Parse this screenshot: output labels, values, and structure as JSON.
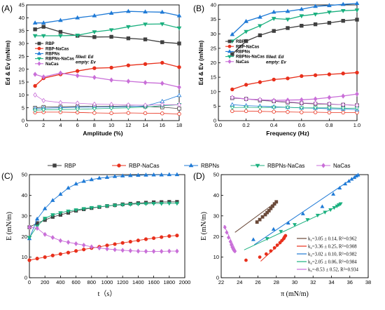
{
  "chart_data": [
    {
      "panel": "(A)",
      "type": "line",
      "xlabel": "Amplitude (%)",
      "ylabel": "Ed & Ev (mN/m)",
      "xlim": [
        0,
        18
      ],
      "ylim": [
        0,
        45
      ],
      "xticks": [
        "0",
        "2",
        "4",
        "6",
        "8",
        "10",
        "12",
        "14",
        "16",
        "18"
      ],
      "yticks": [
        "0",
        "5",
        "10",
        "15",
        "20",
        "25",
        "30",
        "35",
        "40",
        "45"
      ],
      "legend": [
        "RBP",
        "RBP-NaCas",
        "RBPNs",
        "RBPNs-NaCas",
        "NaCas"
      ],
      "legend_note": [
        "filled: Ed",
        "empty: Ev"
      ],
      "x": [
        1,
        2,
        4,
        6,
        8,
        10,
        12,
        14,
        16,
        18
      ],
      "series": [
        {
          "name": "RBP",
          "color": "#404040",
          "marker": "square",
          "filled": [
            35.5,
            36.5,
            34.5,
            33.0,
            32.5,
            32.6,
            32.0,
            31.6,
            30.5,
            30.0
          ],
          "empty": [
            5.0,
            5.3,
            5.4,
            5.5,
            5.6,
            5.6,
            5.7,
            5.5,
            5.2,
            4.7
          ]
        },
        {
          "name": "RBP-NaCas",
          "color": "#e8301c",
          "marker": "circle",
          "filled": [
            13.5,
            16.5,
            18.0,
            19.3,
            20.4,
            20.6,
            21.5,
            22.0,
            22.5,
            20.8
          ],
          "empty": [
            3.2,
            3.3,
            3.3,
            3.2,
            3.0,
            2.9,
            3.0,
            2.9,
            2.8,
            2.6
          ]
        },
        {
          "name": "RBPNs",
          "color": "#1f7ad6",
          "marker": "triangle",
          "filled": [
            38.0,
            38.0,
            39.0,
            40.0,
            40.8,
            41.8,
            42.5,
            42.3,
            42.2,
            40.8
          ],
          "empty": [
            4.6,
            4.8,
            5.0,
            5.2,
            5.2,
            5.3,
            5.5,
            5.7,
            7.5,
            9.8
          ]
        },
        {
          "name": "RBPNs-NaCas",
          "color": "#1bb07f",
          "marker": "triangle-down",
          "filled": [
            33.0,
            33.0,
            33.0,
            33.2,
            34.5,
            35.3,
            36.5,
            37.5,
            37.6,
            36.0
          ],
          "empty": [
            4.0,
            4.2,
            4.3,
            4.4,
            4.6,
            4.8,
            5.0,
            5.3,
            5.8,
            6.2
          ]
        },
        {
          "name": "NaCas",
          "color": "#c96fd8",
          "marker": "diamond",
          "filled": [
            18.0,
            17.0,
            18.5,
            17.5,
            16.8,
            15.8,
            15.3,
            14.8,
            14.5,
            13.0
          ],
          "empty": [
            10.0,
            7.8,
            7.0,
            6.8,
            6.4,
            6.3,
            6.1,
            6.0,
            6.2,
            6.2
          ]
        }
      ]
    },
    {
      "panel": "(B)",
      "type": "line",
      "xlabel": "Frequency (Hz)",
      "ylabel": "Ed & Ev (mN/m)",
      "xlim": [
        0,
        1.0
      ],
      "ylim": [
        0,
        40
      ],
      "xticks": [
        "0.0",
        "0.2",
        "0.4",
        "0.6",
        "0.8",
        "1.0"
      ],
      "yticks": [
        "0",
        "5",
        "10",
        "15",
        "20",
        "25",
        "30",
        "35",
        "40"
      ],
      "legend": [
        "RBP",
        "RBP-NaCas",
        "RBPNs",
        "RBPNs-NaCas",
        "NaCas"
      ],
      "legend_note": [
        "filled: Ed",
        "empty: Ev"
      ],
      "x": [
        0.1,
        0.2,
        0.3,
        0.4,
        0.5,
        0.6,
        0.7,
        0.8,
        0.9,
        1.0
      ],
      "series": [
        {
          "name": "RBP",
          "color": "#404040",
          "marker": "square",
          "filled": [
            23.0,
            27.5,
            29.5,
            31.0,
            32.0,
            32.8,
            33.3,
            33.8,
            34.5,
            34.9
          ],
          "empty": [
            7.8,
            7.5,
            7.0,
            6.7,
            6.3,
            6.0,
            5.8,
            5.7,
            5.5,
            5.3
          ]
        },
        {
          "name": "RBP-NaCas",
          "color": "#e8301c",
          "marker": "circle",
          "filled": [
            10.8,
            12.4,
            13.3,
            14.2,
            14.6,
            15.4,
            15.7,
            16.0,
            16.3,
            16.6
          ],
          "empty": [
            3.3,
            3.3,
            3.2,
            3.1,
            3.0,
            2.9,
            2.9,
            2.8,
            2.8,
            2.8
          ]
        },
        {
          "name": "RBPNs",
          "color": "#1f7ad6",
          "marker": "triangle",
          "filled": [
            29.8,
            34.3,
            35.8,
            37.5,
            37.8,
            38.5,
            39.5,
            39.8,
            40.2,
            40.5
          ],
          "empty": [
            5.5,
            5.2,
            5.0,
            4.8,
            4.6,
            4.4,
            4.3,
            4.1,
            4.0,
            3.8
          ]
        },
        {
          "name": "RBPNs-NaCas",
          "color": "#1bb07f",
          "marker": "triangle-down",
          "filled": [
            27.5,
            30.8,
            32.8,
            35.3,
            35.0,
            36.2,
            36.8,
            37.5,
            38.0,
            38.2
          ],
          "empty": [
            4.5,
            4.6,
            4.5,
            4.6,
            4.6,
            4.4,
            4.4,
            4.4,
            4.3,
            4.3
          ]
        },
        {
          "name": "NaCas",
          "color": "#c96fd8",
          "marker": "diamond",
          "filled": [
            8.0,
            7.5,
            7.2,
            7.0,
            7.1,
            7.2,
            7.5,
            8.0,
            8.5,
            9.2
          ],
          "empty": [
            8.0,
            7.5,
            7.3,
            6.8,
            6.5,
            6.1,
            6.0,
            5.8,
            5.5,
            5.3
          ]
        }
      ]
    },
    {
      "panel": "(C)",
      "type": "line",
      "xlabel": "t（s）",
      "ylabel": "E (mN/m)",
      "xlim": [
        0,
        2000
      ],
      "ylim": [
        0,
        50
      ],
      "xticks": [
        "0",
        "200",
        "400",
        "600",
        "800",
        "1000",
        "1200",
        "1400",
        "1600",
        "1800",
        "2000"
      ],
      "yticks": [
        "0",
        "10",
        "20",
        "30",
        "40",
        "50"
      ],
      "legend": [
        "RBP",
        "RBP-NaCas",
        "RBPNs",
        "RBPNs-NaCas",
        "NaCas"
      ],
      "series": [
        {
          "name": "RBP",
          "color": "#404040",
          "marker": "square",
          "x": [
            0,
            100,
            200,
            300,
            400,
            500,
            600,
            700,
            800,
            900,
            1000,
            1100,
            1200,
            1300,
            1400,
            1500,
            1600,
            1700,
            1800,
            1900
          ],
          "y": [
            24.5,
            26.5,
            28.0,
            29.5,
            30.5,
            31.5,
            32.5,
            33.2,
            33.8,
            34.3,
            34.8,
            35.2,
            35.6,
            35.9,
            36.2,
            36.4,
            36.6,
            36.7,
            36.8,
            36.8
          ]
        },
        {
          "name": "RBP-NaCas",
          "color": "#e8301c",
          "marker": "circle",
          "x": [
            0,
            100,
            200,
            300,
            400,
            500,
            600,
            700,
            800,
            900,
            1000,
            1100,
            1200,
            1300,
            1400,
            1500,
            1600,
            1700,
            1800,
            1900
          ],
          "y": [
            8.5,
            9.3,
            10.0,
            10.8,
            11.5,
            12.2,
            13.0,
            13.7,
            14.4,
            15.0,
            15.7,
            16.3,
            16.9,
            17.5,
            18.1,
            18.7,
            19.2,
            19.7,
            20.2,
            20.5
          ]
        },
        {
          "name": "RBPNs",
          "color": "#1f7ad6",
          "marker": "triangle",
          "x": [
            0,
            100,
            200,
            300,
            400,
            500,
            600,
            700,
            800,
            900,
            1000,
            1100,
            1200,
            1300,
            1400,
            1500,
            1600,
            1700,
            1800,
            1900
          ],
          "y": [
            19.0,
            28.5,
            33.5,
            37.5,
            40.5,
            43.5,
            45.5,
            46.8,
            47.6,
            48.3,
            48.7,
            49.1,
            49.4,
            49.6,
            49.7,
            49.8,
            49.9,
            49.9,
            50.0,
            50.0
          ]
        },
        {
          "name": "RBPNs-NaCas",
          "color": "#1bb07f",
          "marker": "triangle-down",
          "x": [
            0,
            100,
            200,
            300,
            400,
            500,
            600,
            700,
            800,
            900,
            1000,
            1100,
            1200,
            1300,
            1400,
            1500,
            1600,
            1700,
            1800,
            1900
          ],
          "y": [
            19.5,
            25.0,
            28.8,
            30.5,
            31.5,
            32.3,
            32.9,
            33.5,
            34.0,
            34.4,
            34.8,
            35.1,
            35.4,
            35.6,
            35.8,
            35.9,
            36.0,
            36.0,
            36.1,
            36.1
          ]
        },
        {
          "name": "NaCas",
          "color": "#c96fd8",
          "marker": "diamond",
          "x": [
            0,
            100,
            200,
            300,
            400,
            500,
            600,
            700,
            800,
            900,
            1000,
            1100,
            1200,
            1300,
            1400,
            1500,
            1600,
            1700,
            1800,
            1900
          ],
          "y": [
            24.5,
            24.0,
            21.0,
            19.5,
            18.0,
            17.2,
            16.5,
            15.8,
            15.0,
            14.4,
            14.0,
            13.6,
            13.3,
            13.1,
            12.9,
            12.8,
            12.8,
            12.8,
            12.9,
            12.9
          ]
        }
      ]
    },
    {
      "panel": "(D)",
      "type": "scatter",
      "xlabel": "π (mN/m)",
      "ylabel": "E (mN/m)",
      "xlim": [
        22,
        38
      ],
      "ylim": [
        0,
        50
      ],
      "xticks": [
        "22",
        "24",
        "26",
        "28",
        "30",
        "32",
        "34",
        "36",
        "38"
      ],
      "yticks": [
        "0",
        "10",
        "20",
        "30",
        "40",
        "50"
      ],
      "series": [
        {
          "label": "k₁=3.05 ± 0.14,  R²=0.962",
          "color": "#6b4a3a",
          "marker": "square",
          "x": [
            25.9,
            26.2,
            26.5,
            26.8,
            27.0,
            27.2,
            27.4,
            27.6,
            27.8,
            28.0
          ],
          "y": [
            27.0,
            28.2,
            29.5,
            30.6,
            31.6,
            32.5,
            33.6,
            34.7,
            35.8,
            36.8
          ],
          "fit": [
            [
              23.5,
              22.0
            ],
            [
              28.0,
              36.8
            ]
          ]
        },
        {
          "label": "k₂=3.36 ± 0.25,  R²=0.908",
          "color": "#e8301c",
          "marker": "circle",
          "x": [
            24.7,
            26.2,
            26.9,
            27.4,
            27.8,
            28.1,
            28.4,
            28.6,
            28.8,
            28.9,
            29.0
          ],
          "y": [
            8.5,
            10.0,
            11.5,
            13.0,
            14.5,
            15.8,
            17.0,
            18.0,
            19.0,
            19.8,
            20.4
          ],
          "fit": [
            [
              26.3,
              8.0
            ],
            [
              29.0,
              19.0
            ]
          ]
        },
        {
          "label": "k₃=3.02 ± 0.10,  R²=0.982",
          "color": "#1f7ad6",
          "marker": "triangle",
          "x": [
            25.5,
            27.7,
            29.3,
            30.9,
            33.0,
            34.2,
            34.9,
            35.5,
            35.9,
            36.2,
            36.5,
            36.7,
            36.9
          ],
          "y": [
            18.5,
            23.5,
            26.5,
            31.0,
            34.5,
            40.5,
            43.5,
            45.5,
            46.8,
            47.8,
            48.6,
            49.3,
            49.8
          ],
          "fit": [
            [
              25.6,
              16.0
            ],
            [
              36.9,
              50.0
            ]
          ]
        },
        {
          "label": "k₄=2.05 ± 0.06,  R²=0.984",
          "color": "#1bb07f",
          "marker": "triangle-down",
          "x": [
            27.0,
            28.5,
            30.0,
            31.4,
            32.5,
            33.3,
            33.9,
            34.3,
            34.6,
            34.8,
            35.0
          ],
          "y": [
            19.0,
            22.5,
            25.8,
            28.2,
            30.3,
            31.8,
            33.0,
            34.0,
            34.8,
            35.4,
            35.9
          ],
          "fit": [
            [
              24.5,
              13.5
            ],
            [
              35.0,
              35.3
            ]
          ]
        },
        {
          "label": "k₅=-8.53 ± 0.52,  R²=0.934",
          "color": "#c96fd8",
          "marker": "diamond",
          "x": [
            22.4,
            22.6,
            22.8,
            23.0,
            23.1,
            23.2,
            23.3,
            23.4,
            23.5
          ],
          "y": [
            24.5,
            22.0,
            19.5,
            17.5,
            16.0,
            14.8,
            13.9,
            13.2,
            12.9
          ],
          "fit": [
            [
              22.3,
              25.5
            ],
            [
              23.6,
              13.0
            ]
          ]
        }
      ]
    }
  ]
}
